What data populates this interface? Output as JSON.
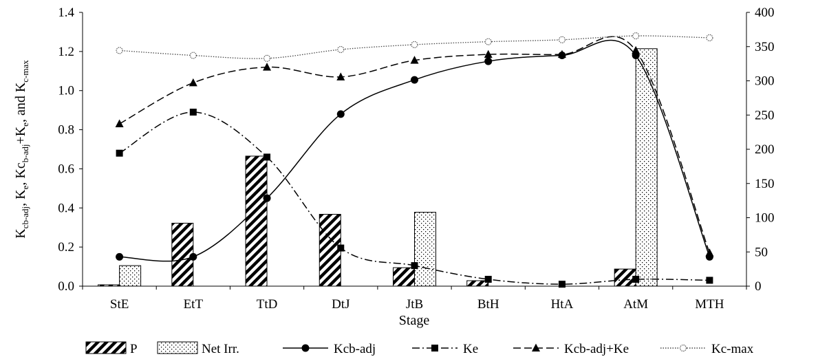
{
  "chart_data": {
    "type": "bar",
    "title": "",
    "xlabel": "Stage",
    "ylabel_left": "Kcb-adj, Ke, Kcb-adj+Ke, and Kc-max",
    "ylabel_left_parts": {
      "p1": "K",
      "s1": "cb-adj",
      "p2": ", K",
      "s2": "e",
      "p3": ", Kc",
      "s3": "b-adj",
      "p4": "+K",
      "s4": "e",
      "p5": ", and  K",
      "s5": "c-max"
    },
    "ylabel_right": "",
    "categories": [
      "StE",
      "EtT",
      "TtD",
      "DtJ",
      "JtB",
      "BtH",
      "HtA",
      "AtM",
      "MTH"
    ],
    "ylim_left": [
      0,
      1.4
    ],
    "ylim_right": [
      0,
      400
    ],
    "yticks_left": [
      "0.0",
      "0.2",
      "0.4",
      "0.6",
      "0.8",
      "1.0",
      "1.2",
      "1.4"
    ],
    "yticks_right": [
      "0",
      "50",
      "100",
      "150",
      "200",
      "250",
      "300",
      "350",
      "400"
    ],
    "grid": false,
    "legend_position": "bottom",
    "bar_series": [
      {
        "name": "P",
        "axis": "right",
        "pattern": "diagonal-hatch",
        "values": [
          2,
          92,
          190,
          105,
          27,
          8,
          0,
          25,
          0
        ]
      },
      {
        "name": "Net Irr.",
        "axis": "right",
        "pattern": "dotted",
        "values": [
          30,
          0,
          0,
          0,
          108,
          0,
          0,
          347,
          0
        ]
      }
    ],
    "line_series": [
      {
        "name": "Kcb-adj",
        "axis": "left",
        "dash": "solid",
        "marker": "circle",
        "values": [
          0.15,
          0.15,
          0.45,
          0.88,
          1.055,
          1.15,
          1.18,
          1.18,
          0.15
        ]
      },
      {
        "name": "Ke",
        "axis": "left",
        "dash": "dash-dot",
        "marker": "square",
        "values": [
          0.68,
          0.89,
          0.66,
          0.195,
          0.105,
          0.035,
          0.01,
          0.035,
          0.03
        ]
      },
      {
        "name": "Kcb-adj+Ke",
        "axis": "left",
        "dash": "dashed",
        "marker": "triangle",
        "values": [
          0.83,
          1.04,
          1.12,
          1.07,
          1.155,
          1.185,
          1.185,
          1.205,
          0.17
        ]
      },
      {
        "name": "Kc-max",
        "axis": "left",
        "dash": "dotted",
        "marker": "star",
        "values": [
          1.205,
          1.18,
          1.165,
          1.21,
          1.235,
          1.25,
          1.26,
          1.28,
          1.27
        ]
      }
    ]
  }
}
